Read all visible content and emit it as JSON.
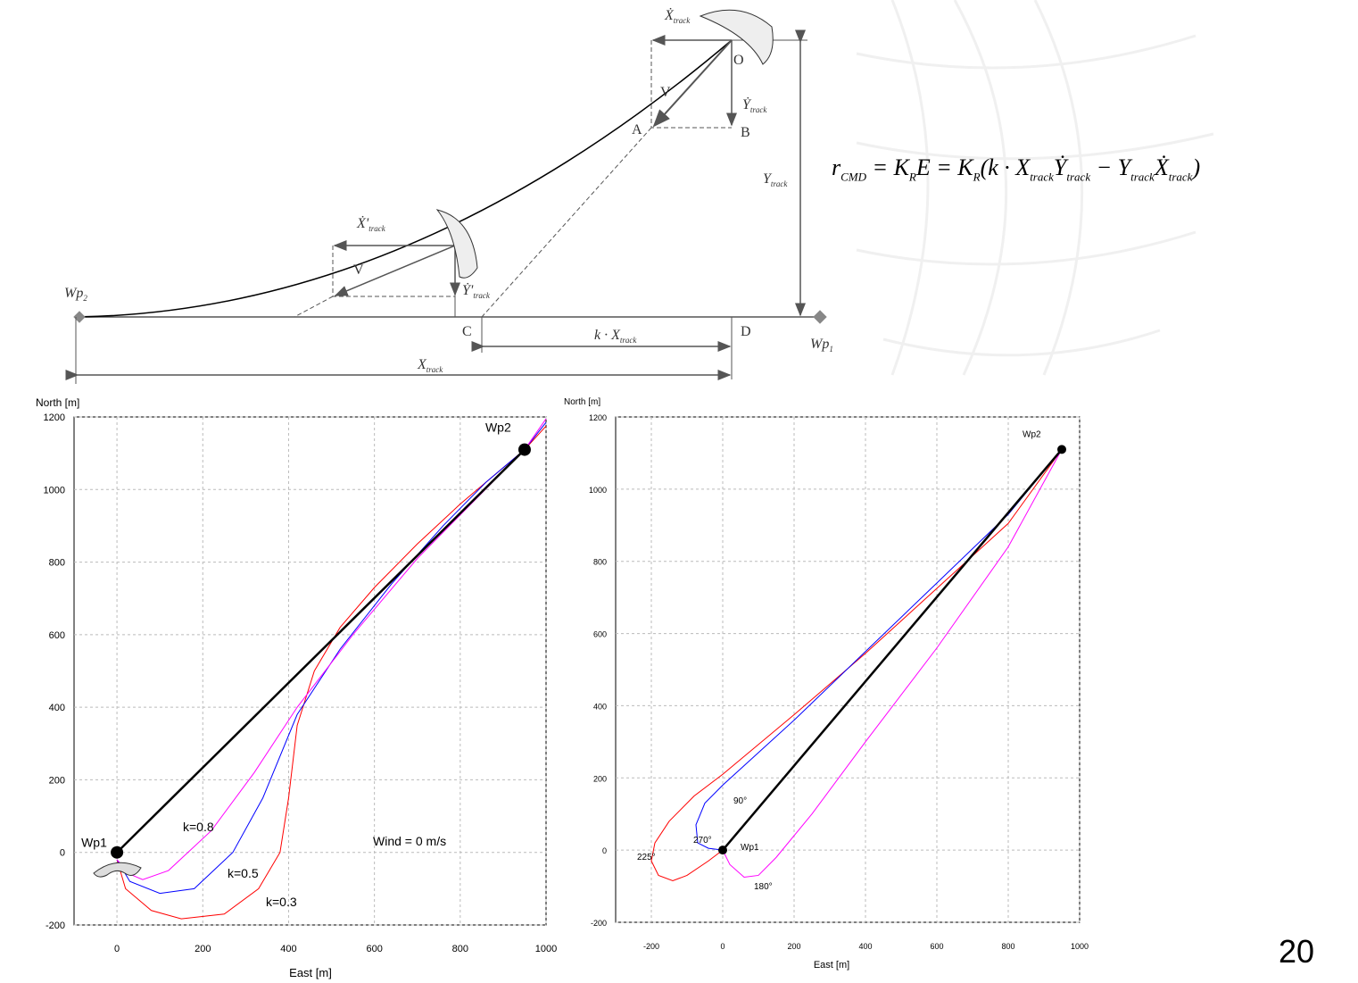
{
  "diagram": {
    "labels": [
      {
        "t": "Ẋ",
        "sub": "track"
      },
      {
        "t": "Ẏ",
        "sub": "track"
      },
      {
        "t": "V"
      },
      {
        "t": "O"
      },
      {
        "t": "A"
      },
      {
        "t": "B"
      },
      {
        "t": "Y",
        "sub": "track"
      },
      {
        "t": "Ẋ'",
        "sub": "track"
      },
      {
        "t": "Ẏ'",
        "sub": "track"
      },
      {
        "t": "V"
      },
      {
        "t": "Wp",
        "sub": "2"
      },
      {
        "t": "C"
      },
      {
        "t": "D"
      },
      {
        "t": "Wp",
        "sub": "1"
      },
      {
        "t": "k · X",
        "sub": "track"
      },
      {
        "t": "X",
        "sub": "track"
      }
    ]
  },
  "formula": [
    {
      "t": "r",
      "sub": "CMD"
    },
    {
      "t": " = "
    },
    {
      "t": "K",
      "sub": "R"
    },
    {
      "t": "E = "
    },
    {
      "t": "K",
      "sub": "R"
    },
    {
      "t": "(k · "
    },
    {
      "t": "X",
      "sub": "track"
    },
    {
      "t": "Ẏ",
      "sub": "track"
    },
    {
      "t": " − "
    },
    {
      "t": "Y",
      "sub": "track"
    },
    {
      "t": "Ẋ",
      "sub": "track"
    },
    {
      "t": ")"
    }
  ],
  "page_number": "20",
  "chart_data": [
    {
      "type": "line",
      "x_label": "East [m]",
      "y_label": "North [m]",
      "xlim": [
        -100,
        1000
      ],
      "ylim": [
        -200,
        1200
      ],
      "xticks": [
        0,
        200,
        400,
        600,
        800,
        1000
      ],
      "yticks": [
        -200,
        0,
        200,
        400,
        600,
        800,
        1000,
        1200
      ],
      "grid": true,
      "series": [
        {
          "name": "k=0.3",
          "color": "#ff0000",
          "x": [
            0,
            20,
            80,
            150,
            250,
            330,
            380,
            400,
            420,
            460,
            520,
            600,
            700,
            800,
            900,
            950,
            1000
          ],
          "values": [
            -20,
            -100,
            -160,
            -183,
            -170,
            -100,
            0,
            150,
            350,
            500,
            620,
            730,
            850,
            960,
            1060,
            1110,
            1175
          ]
        },
        {
          "name": "k=0.5",
          "color": "#0000ff",
          "x": [
            0,
            30,
            100,
            180,
            270,
            340,
            420,
            520,
            640,
            760,
            860,
            950,
            1000
          ],
          "values": [
            -20,
            -80,
            -113,
            -100,
            0,
            150,
            380,
            560,
            740,
            900,
            1020,
            1110,
            1185
          ]
        },
        {
          "name": "k=0.8",
          "color": "#ff00ff",
          "x": [
            0,
            30,
            60,
            120,
            220,
            320,
            420,
            550,
            700,
            850,
            950,
            1000
          ],
          "values": [
            -20,
            -60,
            -75,
            -50,
            60,
            220,
            400,
            600,
            810,
            990,
            1110,
            1195
          ]
        },
        {
          "color": "#000000",
          "x": [
            0,
            950
          ],
          "values": [
            0,
            1110
          ]
        }
      ],
      "points": [
        {
          "label": "Wp1",
          "x": 0,
          "y": 0
        },
        {
          "label": "Wp2",
          "x": 950,
          "y": 1110
        }
      ],
      "annotations": [
        "Wind = 0 m/s"
      ]
    },
    {
      "type": "line",
      "x_label": "East [m]",
      "y_label": "North [m]",
      "xlim": [
        -300,
        1000
      ],
      "ylim": [
        -200,
        1200
      ],
      "xticks": [
        -200,
        0,
        200,
        400,
        600,
        800,
        1000
      ],
      "yticks": [
        -200,
        0,
        200,
        400,
        600,
        800,
        1000,
        1200
      ],
      "grid": true,
      "series": [
        {
          "name": "225°",
          "color": "#ff0000",
          "x": [
            0,
            -40,
            -100,
            -140,
            -180,
            -200,
            -190,
            -150,
            -80,
            0,
            200,
            400,
            600,
            800,
            950
          ],
          "values": [
            0,
            -30,
            -70,
            -85,
            -70,
            -30,
            20,
            80,
            150,
            210,
            375,
            545,
            725,
            905,
            1110
          ]
        },
        {
          "name": "270°",
          "color": "#0000ff",
          "x": [
            0,
            -40,
            -70,
            -75,
            -50,
            0,
            200,
            400,
            600,
            800,
            950
          ],
          "values": [
            0,
            5,
            20,
            70,
            130,
            180,
            360,
            550,
            740,
            930,
            1110
          ]
        },
        {
          "name": "180°",
          "color": "#ff00ff",
          "x": [
            0,
            20,
            60,
            100,
            150,
            250,
            400,
            600,
            800,
            950
          ],
          "values": [
            0,
            -40,
            -75,
            -70,
            -20,
            100,
            300,
            560,
            840,
            1110
          ]
        },
        {
          "name": "90°",
          "color": "#000000",
          "x": [
            0,
            950
          ],
          "values": [
            0,
            1110
          ]
        }
      ],
      "points": [
        {
          "label": "Wp1",
          "x": 0,
          "y": 0
        },
        {
          "label": "Wp2",
          "x": 950,
          "y": 1110
        }
      ],
      "annotations": []
    }
  ]
}
